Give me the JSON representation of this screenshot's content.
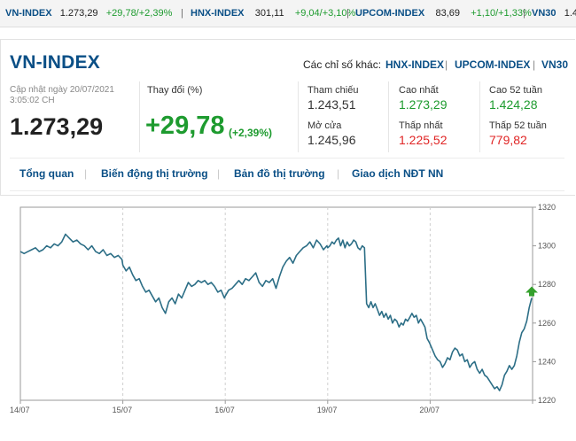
{
  "ticker": [
    {
      "name": "VN-INDEX",
      "value": "1.273,29",
      "change": "+29,78/+2,39%"
    },
    {
      "name": "HNX-INDEX",
      "value": "301,11",
      "change": "+9,04/+3,10%"
    },
    {
      "name": "UPCOM-INDEX",
      "value": "83,69",
      "change": "+1,10/+1,33%"
    },
    {
      "name": "VN30",
      "value": "1.4",
      "change": ""
    }
  ],
  "header": {
    "title": "VN-INDEX",
    "others_label": "Các chỉ số khác:",
    "others_links": [
      "HNX-INDEX",
      "UPCOM-INDEX",
      "VN30"
    ]
  },
  "summary": {
    "updated_line1": "Cập nhật ngày 20/07/2021",
    "updated_line2": "3:05:02 CH",
    "index_value": "1.273,29",
    "change_label": "Thay đổi (%)",
    "change_value": "+29,78",
    "change_pct": "(+2,39%)"
  },
  "stats": {
    "ref_label": "Tham chiếu",
    "ref_value": "1.243,51",
    "open_label": "Mở cửa",
    "open_value": "1.245,96",
    "high_label": "Cao nhất",
    "high_value": "1.273,29",
    "low_label": "Thấp nhất",
    "low_value": "1.225,52",
    "high52_label": "Cao 52 tuần",
    "high52_value": "1.424,28",
    "low52_label": "Thấp 52 tuần",
    "low52_value": "779,82"
  },
  "tabs": [
    "Tổng quan",
    "Biến động thị trường",
    "Bản đồ thị trường",
    "Giao dịch NĐT NN"
  ],
  "colors": {
    "line": "#2c6e86",
    "up_arrow": "#34a02c",
    "accent": "#0a4f86",
    "up": "#1e9b2f",
    "down": "#e02525"
  },
  "chart_data": {
    "type": "line",
    "xlabel": "",
    "ylabel": "",
    "ylim": [
      1220,
      1320
    ],
    "yticks": [
      1320,
      1300,
      1280,
      1260,
      1240,
      1220
    ],
    "x_ticks": [
      "14/07",
      "15/07",
      "16/07",
      "19/07",
      "20/07"
    ],
    "series": [
      {
        "session": "14/07",
        "values": [
          1297,
          1296,
          1297,
          1298,
          1299,
          1297,
          1298,
          1300,
          1299,
          1301,
          1300,
          1302,
          1306,
          1304,
          1302,
          1303,
          1301,
          1300,
          1298,
          1300,
          1297,
          1296,
          1298,
          1295,
          1296,
          1294,
          1295,
          1293
        ]
      },
      {
        "session": "15/07",
        "values": [
          1290,
          1287,
          1289,
          1285,
          1282,
          1283,
          1279,
          1276,
          1277,
          1274,
          1271,
          1273,
          1268,
          1265,
          1271,
          1273,
          1270,
          1275,
          1273,
          1277,
          1281,
          1279,
          1280,
          1282,
          1281,
          1282,
          1280,
          1281,
          1279,
          1276,
          1277,
          1273
        ]
      },
      {
        "session": "16/07",
        "values": [
          1274,
          1277,
          1278,
          1280,
          1282,
          1280,
          1283,
          1282,
          1284,
          1286,
          1281,
          1279,
          1282,
          1281,
          1283,
          1278,
          1284,
          1289,
          1292,
          1294,
          1291,
          1295,
          1297,
          1299,
          1300,
          1302,
          1299,
          1303,
          1301,
          1298,
          1300
        ]
      },
      {
        "session": "19/07",
        "values": [
          1299,
          1300,
          1302,
          1301,
          1303,
          1304,
          1300,
          1303,
          1299,
          1302,
          1300,
          1301,
          1303,
          1302,
          1299,
          1298,
          1300,
          1299,
          1270,
          1268,
          1271,
          1268,
          1270,
          1267,
          1264,
          1266,
          1263,
          1265,
          1262,
          1264,
          1260,
          1262,
          1261,
          1258,
          1260,
          1259,
          1262,
          1261,
          1263,
          1265,
          1263,
          1264,
          1260,
          1262,
          1260,
          1258,
          1252,
          1250
        ]
      },
      {
        "session": "20/07",
        "values": [
          1249,
          1246,
          1243,
          1241,
          1240,
          1237,
          1239,
          1242,
          1241,
          1245,
          1247,
          1246,
          1243,
          1244,
          1240,
          1241,
          1237,
          1239,
          1240,
          1236,
          1234,
          1236,
          1233,
          1232,
          1230,
          1228,
          1226,
          1227,
          1225,
          1228,
          1233,
          1235,
          1238,
          1236,
          1238,
          1243,
          1250,
          1255,
          1257,
          1261,
          1268,
          1273
        ]
      }
    ]
  }
}
